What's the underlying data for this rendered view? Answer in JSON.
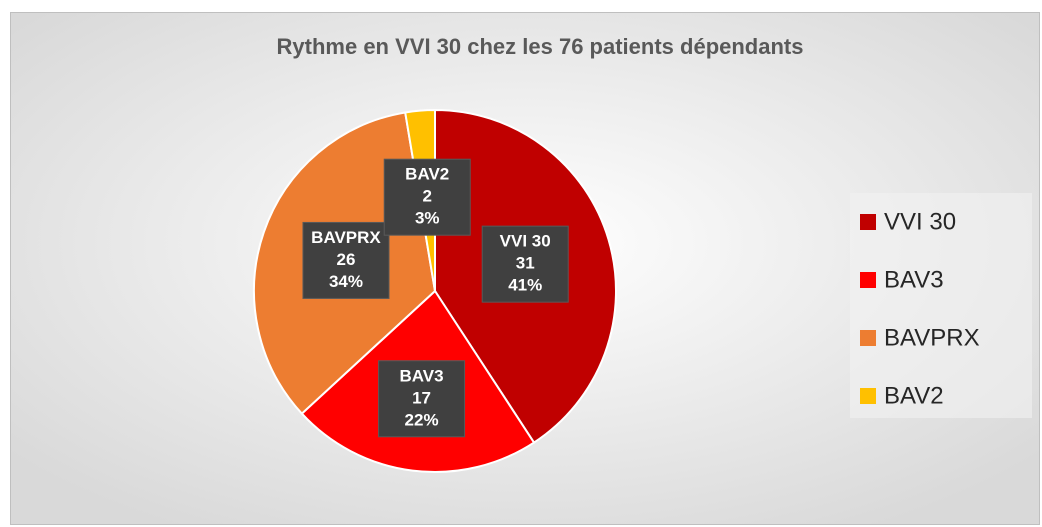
{
  "chart_data": {
    "type": "pie",
    "title": "Rythme en VVI 30 chez les 76 patients dépendants",
    "categories": [
      "VVI 30",
      "BAV3",
      "BAVPRX",
      "BAV2"
    ],
    "values": [
      31,
      17,
      26,
      2
    ],
    "percent_labels": [
      "41%",
      "22%",
      "34%",
      "3%"
    ],
    "colors": [
      "#c00000",
      "#ff0000",
      "#ed7d31",
      "#ffc000"
    ],
    "legend": "right"
  }
}
